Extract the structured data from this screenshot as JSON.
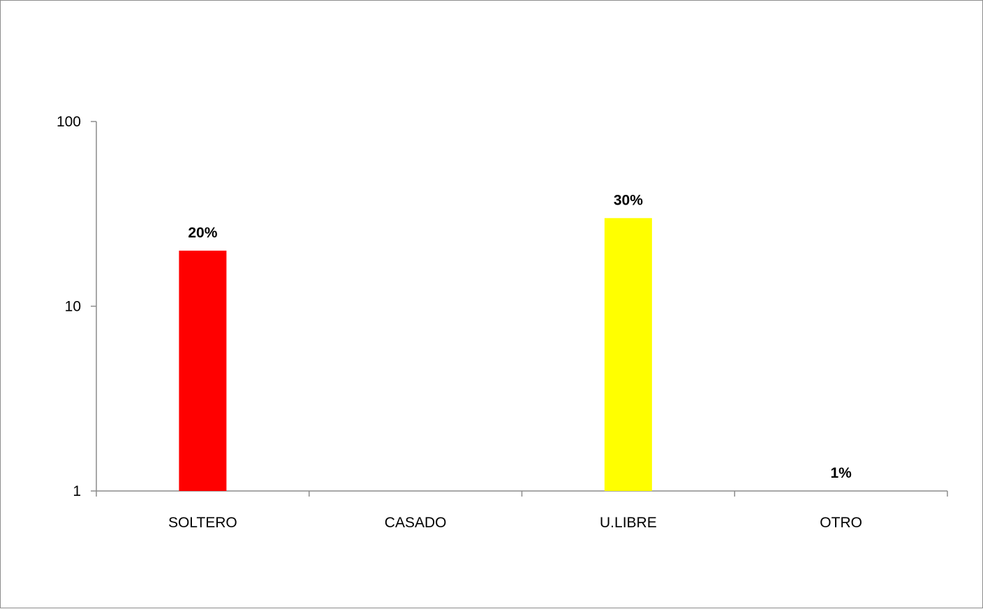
{
  "chart_data": {
    "type": "bar",
    "categories": [
      "SOLTERO",
      "CASADO",
      "U.LIBRE",
      "OTRO"
    ],
    "values": [
      20,
      1,
      30,
      1
    ],
    "data_labels": [
      "20%",
      "",
      "30%",
      "1%"
    ],
    "colors": [
      "#ff0000",
      "#000000",
      "#ffff00",
      "#000000"
    ],
    "y_scale": "log",
    "ylim": [
      1,
      100
    ],
    "y_ticks": [
      1,
      10,
      100
    ],
    "y_tick_labels": [
      "1",
      "10",
      "100"
    ],
    "title": "",
    "xlabel": "",
    "ylabel": "",
    "grid": false,
    "legend": "none"
  }
}
